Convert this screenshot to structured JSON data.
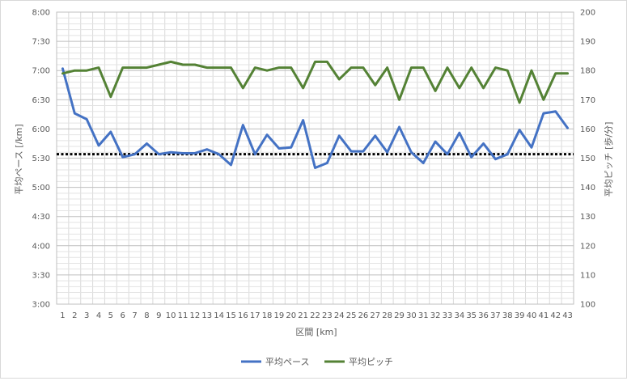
{
  "chart_data": {
    "type": "line",
    "xlabel": "区間 [km]",
    "ylabel": "平均ペース [/km]",
    "y2label": "平均ピッチ [歩/分]",
    "x": [
      1,
      2,
      3,
      4,
      5,
      6,
      7,
      8,
      9,
      10,
      11,
      12,
      13,
      14,
      15,
      16,
      17,
      18,
      19,
      20,
      21,
      22,
      23,
      24,
      25,
      26,
      27,
      28,
      29,
      30,
      31,
      32,
      33,
      34,
      35,
      36,
      37,
      38,
      39,
      40,
      41,
      42,
      43
    ],
    "y_ticks": [
      "3:00",
      "3:30",
      "4:00",
      "4:30",
      "5:00",
      "5:30",
      "6:00",
      "6:30",
      "7:00",
      "7:30",
      "8:00"
    ],
    "y_range_seconds": [
      180,
      480
    ],
    "y2_ticks": [
      "100",
      "110",
      "120",
      "130",
      "140",
      "150",
      "160",
      "170",
      "180",
      "190",
      "200"
    ],
    "y2_range": [
      100,
      200
    ],
    "grid": true,
    "legend_position": "bottom",
    "reference_line": {
      "axis": "left",
      "value_seconds": 334,
      "style": "dotted",
      "color": "#000000"
    },
    "series": [
      {
        "name": "平均ペース",
        "axis": "left",
        "color": "#4472C4",
        "values_seconds": [
          422,
          376,
          370,
          343,
          357,
          331,
          334,
          345,
          334,
          336,
          335,
          335,
          339,
          334,
          323,
          364,
          334,
          354,
          340,
          341,
          369,
          320,
          325,
          353,
          337,
          337,
          353,
          336,
          362,
          336,
          325,
          347,
          334,
          356,
          331,
          345,
          329,
          334,
          359,
          341,
          376,
          378,
          361
        ]
      },
      {
        "name": "平均ピッチ",
        "axis": "right",
        "color": "#548235",
        "values": [
          179,
          180,
          180,
          181,
          171,
          181,
          181,
          181,
          182,
          183,
          182,
          182,
          181,
          181,
          181,
          174,
          181,
          180,
          181,
          181,
          174,
          183,
          183,
          177,
          181,
          181,
          175,
          181,
          170,
          181,
          181,
          173,
          181,
          174,
          181,
          174,
          181,
          180,
          169,
          180,
          170,
          179,
          179
        ]
      }
    ]
  }
}
